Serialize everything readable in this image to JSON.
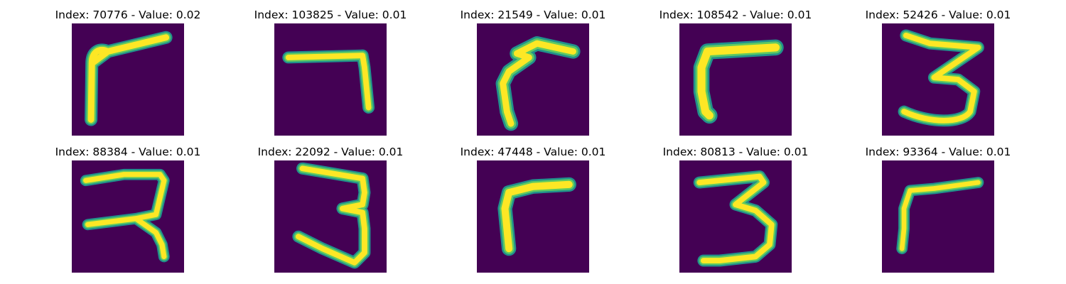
{
  "colors": {
    "background": "#440154",
    "stroke_outer": "#21918c",
    "stroke_mid": "#5ec962",
    "stroke_core": "#fde725"
  },
  "panels": [
    {
      "title": "Index: 70776 - Value: 0.02",
      "glyph": "seven-leaning"
    },
    {
      "title": "Index: 103825 - Value: 0.01",
      "glyph": "seven-flat"
    },
    {
      "title": "Index: 21549 - Value: 0.01",
      "glyph": "seven-curved"
    },
    {
      "title": "Index: 108542 - Value: 0.01",
      "glyph": "seven-thick"
    },
    {
      "title": "Index: 52426 - Value: 0.01",
      "glyph": "three-angular"
    },
    {
      "title": "Index: 88384 - Value: 0.01",
      "glyph": "seven-crossed"
    },
    {
      "title": "Index: 22092 - Value: 0.01",
      "glyph": "three-tall"
    },
    {
      "title": "Index: 47448 - Value: 0.01",
      "glyph": "seven-hook"
    },
    {
      "title": "Index: 80813 - Value: 0.01",
      "glyph": "three-round"
    },
    {
      "title": "Index: 93364 - Value: 0.01",
      "glyph": "seven-thin"
    }
  ]
}
